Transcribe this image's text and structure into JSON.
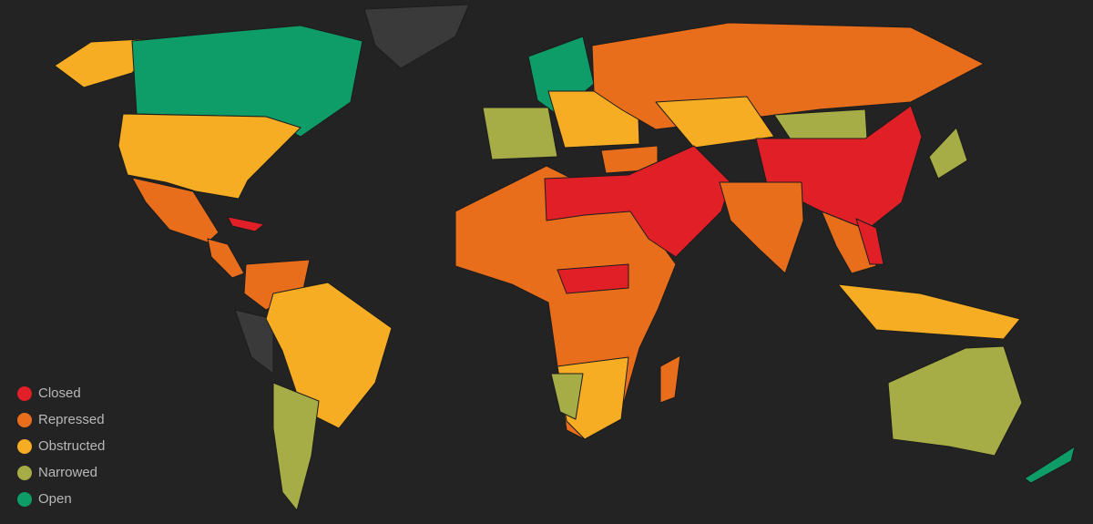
{
  "legend": {
    "items": [
      {
        "label": "Closed",
        "color": "#e01f26"
      },
      {
        "label": "Repressed",
        "color": "#e86e1c"
      },
      {
        "label": "Obstructed",
        "color": "#f6ad23"
      },
      {
        "label": "Narrowed",
        "color": "#a7ad46"
      },
      {
        "label": "Open",
        "color": "#0e9c69"
      }
    ]
  }
}
